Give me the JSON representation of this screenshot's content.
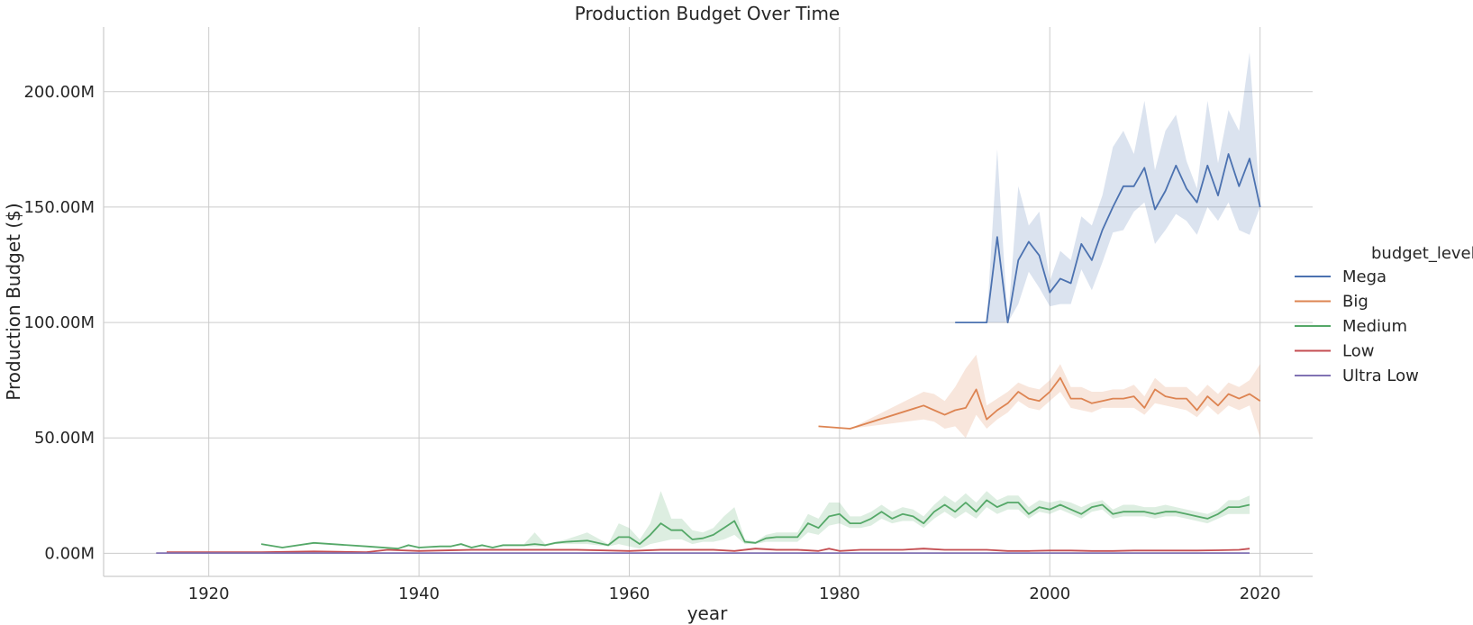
{
  "chart_data": {
    "type": "line",
    "title": "Production Budget Over Time",
    "xlabel": "year",
    "ylabel": "Production Budget ($)",
    "xlim": [
      1910,
      2025
    ],
    "ylim": [
      -10000000,
      228000000
    ],
    "xticks": [
      1920,
      1940,
      1960,
      1980,
      2000,
      2020
    ],
    "xtick_labels": [
      "1920",
      "1940",
      "1960",
      "1980",
      "2000",
      "2020"
    ],
    "yticks": [
      0,
      50000000,
      100000000,
      150000000,
      200000000
    ],
    "ytick_labels": [
      "0.00M",
      "50.00M",
      "100.00M",
      "150.00M",
      "200.00M"
    ],
    "grid": true,
    "legend": {
      "title": "budget_level",
      "placement": "right"
    },
    "series": [
      {
        "name": "Mega",
        "color": "#4c72b0",
        "x": [
          1991,
          1992,
          1993,
          1994,
          1995,
          1996,
          1997,
          1998,
          1999,
          2000,
          2001,
          2002,
          2003,
          2004,
          2005,
          2006,
          2007,
          2008,
          2009,
          2010,
          2011,
          2012,
          2013,
          2014,
          2015,
          2016,
          2017,
          2018,
          2019,
          2020
        ],
        "y": [
          100,
          100,
          100,
          100,
          137,
          100,
          127,
          135,
          129,
          113,
          119,
          117,
          134,
          127,
          140,
          150,
          159,
          159,
          167,
          149,
          157,
          168,
          158,
          152,
          168,
          155,
          173,
          159,
          171,
          150
        ],
        "lower": [
          100,
          100,
          100,
          100,
          100,
          100,
          108,
          122,
          115,
          107,
          108,
          108,
          123,
          114,
          126,
          139,
          140,
          148,
          152,
          134,
          140,
          147,
          144,
          138,
          150,
          144,
          152,
          140,
          138,
          150
        ],
        "upper": [
          100,
          100,
          100,
          100,
          175,
          100,
          159,
          142,
          148,
          118,
          131,
          127,
          146,
          142,
          155,
          176,
          183,
          173,
          196,
          166,
          183,
          190,
          170,
          158,
          196,
          169,
          192,
          183,
          217,
          150
        ],
        "y_unit_scale": 1000000
      },
      {
        "name": "Big",
        "color": "#dd8452",
        "x": [
          1978,
          1981,
          1988,
          1989,
          1990,
          1991,
          1992,
          1993,
          1994,
          1995,
          1996,
          1997,
          1998,
          1999,
          2000,
          2001,
          2002,
          2003,
          2004,
          2005,
          2006,
          2007,
          2008,
          2009,
          2010,
          2011,
          2012,
          2013,
          2014,
          2015,
          2016,
          2017,
          2018,
          2019,
          2020
        ],
        "y": [
          55,
          54,
          64,
          62,
          60,
          62,
          63,
          71,
          58,
          62,
          65,
          70,
          67,
          66,
          70,
          76,
          67,
          67,
          65,
          66,
          67,
          67,
          68,
          63,
          71,
          68,
          67,
          67,
          62,
          68,
          64,
          69,
          67,
          69,
          66
        ],
        "lower": [
          55,
          54,
          58,
          57,
          54,
          55,
          50,
          60,
          54,
          58,
          61,
          66,
          63,
          62,
          66,
          70,
          63,
          62,
          61,
          63,
          63,
          63,
          63,
          60,
          65,
          64,
          63,
          62,
          59,
          64,
          60,
          64,
          62,
          64,
          50
        ],
        "upper": [
          55,
          54,
          70,
          69,
          66,
          72,
          80,
          86,
          64,
          67,
          70,
          74,
          72,
          71,
          75,
          82,
          72,
          72,
          70,
          70,
          71,
          71,
          73,
          68,
          76,
          72,
          72,
          72,
          68,
          73,
          69,
          74,
          72,
          75,
          82
        ],
        "y_unit_scale": 1000000
      },
      {
        "name": "Medium",
        "color": "#55a868",
        "x": [
          1925,
          1927,
          1930,
          1935,
          1938,
          1939,
          1940,
          1942,
          1943,
          1944,
          1945,
          1946,
          1947,
          1948,
          1950,
          1951,
          1952,
          1953,
          1954,
          1956,
          1958,
          1959,
          1960,
          1961,
          1962,
          1963,
          1964,
          1965,
          1966,
          1967,
          1968,
          1969,
          1970,
          1971,
          1972,
          1973,
          1974,
          1975,
          1976,
          1977,
          1978,
          1979,
          1980,
          1981,
          1982,
          1983,
          1984,
          1985,
          1986,
          1987,
          1988,
          1989,
          1990,
          1991,
          1992,
          1993,
          1994,
          1995,
          1996,
          1997,
          1998,
          1999,
          2000,
          2001,
          2002,
          2003,
          2004,
          2005,
          2006,
          2007,
          2008,
          2009,
          2010,
          2011,
          2012,
          2013,
          2014,
          2015,
          2016,
          2017,
          2018,
          2019
        ],
        "y": [
          4,
          2.5,
          4.5,
          3,
          2,
          3.5,
          2.5,
          3,
          3,
          4,
          2.5,
          3.5,
          2.5,
          3.5,
          3.5,
          4,
          3.5,
          4.5,
          5,
          5.5,
          3.5,
          7,
          7,
          4,
          8,
          13,
          10,
          10,
          6,
          6.5,
          8,
          11,
          14,
          5,
          4.5,
          6.5,
          7,
          7,
          7,
          13,
          11,
          16,
          17,
          13,
          13,
          15,
          18,
          15,
          17,
          16,
          13,
          18,
          21,
          18,
          22,
          18,
          23,
          20,
          22,
          22,
          17,
          20,
          19,
          21,
          19,
          17,
          20,
          21,
          17,
          18,
          18,
          18,
          17,
          18,
          18,
          17,
          16,
          15,
          17,
          20,
          20,
          21
        ],
        "lower": [
          4,
          2.5,
          4.5,
          3,
          2,
          3,
          2.5,
          3,
          3,
          3.5,
          2.5,
          3,
          2.5,
          3,
          3,
          3,
          3,
          4,
          4,
          4,
          3,
          4,
          3,
          2,
          4,
          5,
          6,
          6,
          4,
          5,
          5,
          6,
          8,
          4,
          4,
          5,
          5,
          5,
          5,
          9,
          8,
          12,
          13,
          11,
          11,
          12,
          15,
          13,
          14,
          14,
          11,
          15,
          18,
          15,
          18,
          15,
          20,
          17,
          19,
          19,
          15,
          18,
          17,
          19,
          17,
          15,
          18,
          19,
          15,
          16,
          16,
          16,
          15,
          16,
          16,
          15,
          14,
          13,
          15,
          17,
          17,
          17
        ],
        "upper": [
          4,
          2.5,
          4.5,
          3,
          2,
          4,
          2.5,
          3,
          3,
          4.5,
          2.5,
          4,
          2.5,
          4,
          4,
          9,
          4,
          5,
          6,
          9,
          4,
          13,
          11,
          6,
          13,
          27,
          15,
          15,
          10,
          9,
          11,
          16,
          20,
          6,
          5,
          8,
          9,
          9,
          9,
          17,
          15,
          22,
          22,
          16,
          16,
          18,
          21,
          18,
          20,
          19,
          16,
          21,
          25,
          22,
          26,
          22,
          27,
          23,
          25,
          25,
          20,
          23,
          22,
          23,
          22,
          20,
          22,
          23,
          19,
          21,
          21,
          20,
          20,
          21,
          20,
          19,
          18,
          17,
          19,
          23,
          23,
          25
        ],
        "y_unit_scale": 1000000
      },
      {
        "name": "Low",
        "color": "#c44e52",
        "x": [
          1916,
          1920,
          1925,
          1930,
          1935,
          1937,
          1940,
          1945,
          1950,
          1955,
          1960,
          1963,
          1965,
          1968,
          1970,
          1972,
          1974,
          1976,
          1978,
          1979,
          1980,
          1982,
          1984,
          1986,
          1988,
          1990,
          1992,
          1994,
          1996,
          1998,
          2000,
          2002,
          2004,
          2006,
          2008,
          2010,
          2012,
          2014,
          2016,
          2018,
          2019
        ],
        "y": [
          0.5,
          0.5,
          0.5,
          0.8,
          0.5,
          1.5,
          1,
          1.5,
          1.5,
          1.5,
          1,
          1.5,
          1.5,
          1.5,
          1,
          2,
          1.5,
          1.5,
          1,
          2,
          1,
          1.5,
          1.5,
          1.5,
          2,
          1.5,
          1.5,
          1.5,
          1,
          1,
          1.2,
          1.2,
          1,
          1,
          1.2,
          1.2,
          1.2,
          1.2,
          1.3,
          1.5,
          2
        ],
        "lower": [
          0.5,
          0.5,
          0.5,
          0.8,
          0.5,
          1.5,
          1,
          1,
          1,
          1,
          0.8,
          1,
          1,
          1,
          0.8,
          1.5,
          1,
          1,
          0.8,
          1.5,
          0.8,
          1.2,
          1.2,
          1.2,
          1.5,
          1.2,
          1.2,
          1.2,
          0.8,
          0.8,
          1,
          1,
          0.8,
          0.8,
          1,
          1,
          1,
          1,
          1.1,
          1.2,
          1.6
        ],
        "upper": [
          0.5,
          0.5,
          0.5,
          0.8,
          0.5,
          1.5,
          1,
          2,
          2,
          2,
          1.2,
          2,
          2,
          2,
          1.2,
          2.5,
          2,
          2,
          1.2,
          2.5,
          1.2,
          1.8,
          1.8,
          1.8,
          2.5,
          1.8,
          1.8,
          1.8,
          1.2,
          1.2,
          1.4,
          1.4,
          1.2,
          1.2,
          1.4,
          1.4,
          1.4,
          1.4,
          1.5,
          1.8,
          2.4
        ],
        "y_unit_scale": 1000000
      },
      {
        "name": "Ultra Low",
        "color": "#8172b3",
        "x": [
          1915,
          1920,
          1930,
          1940,
          1950,
          1960,
          1970,
          1980,
          1990,
          2000,
          2010,
          2019
        ],
        "y": [
          0.1,
          0.1,
          0.1,
          0.1,
          0.1,
          0.1,
          0.1,
          0.1,
          0.1,
          0.1,
          0.1,
          0.1
        ],
        "lower": [
          0.1,
          0.1,
          0.1,
          0.1,
          0.1,
          0.1,
          0.1,
          0.1,
          0.1,
          0.1,
          0.1,
          0.1
        ],
        "upper": [
          0.1,
          0.1,
          0.1,
          0.1,
          0.1,
          0.1,
          0.1,
          0.1,
          0.1,
          0.1,
          0.1,
          0.1
        ],
        "y_unit_scale": 1000000
      }
    ]
  }
}
